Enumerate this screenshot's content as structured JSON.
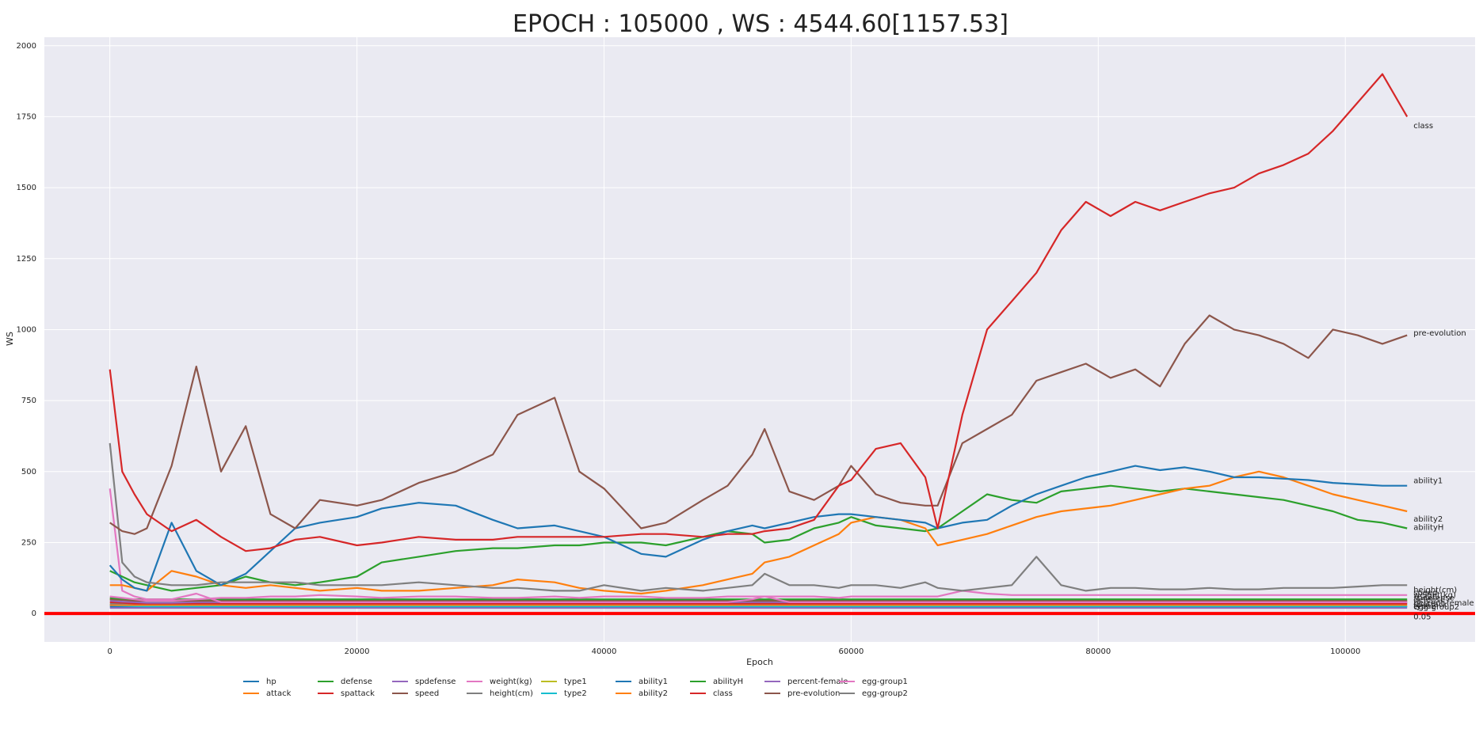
{
  "chart_data": {
    "type": "line",
    "title": "EPOCH : 105000 , WS : 4544.60[1157.53]",
    "xlabel": "Epoch",
    "ylabel": "WS",
    "xlim": [
      -5300,
      110500
    ],
    "ylim": [
      -100,
      2030
    ],
    "xticks": [
      0,
      20000,
      40000,
      60000,
      80000,
      100000
    ],
    "xtick_labels": [
      "0",
      "20000",
      "40000",
      "60000",
      "80000",
      "100000"
    ],
    "yticks": [
      0,
      250,
      500,
      750,
      1000,
      1250,
      1500,
      1750,
      2000
    ],
    "ytick_labels": [
      "0",
      "250",
      "500",
      "750",
      "1000",
      "1250",
      "1500",
      "1750",
      "2000"
    ],
    "grid": true,
    "legend_position": "bottom",
    "threshold_line": {
      "y": 0,
      "color": "#ff0000"
    },
    "end_annotations": [
      {
        "text": "class",
        "y": 1720
      },
      {
        "text": "pre-evolution",
        "y": 990
      },
      {
        "text": "ability1",
        "y": 470
      },
      {
        "text": "ability2",
        "y": 335
      },
      {
        "text": "abilityH",
        "y": 305
      },
      {
        "text": "height(cm)",
        "y": 85
      },
      {
        "text": "speed",
        "y": 75
      },
      {
        "text": "weight(kg)",
        "y": 67
      },
      {
        "text": "spdefense",
        "y": 57
      },
      {
        "text": "defense",
        "y": 50
      },
      {
        "text": "percent-female",
        "y": 40
      },
      {
        "text": "spattack",
        "y": 34
      },
      {
        "text": "type2",
        "y": 28
      },
      {
        "text": "egg-group2",
        "y": 25
      },
      {
        "text": "0.05",
        "y": -10
      }
    ],
    "x": [
      0,
      1000,
      2000,
      3000,
      5000,
      7000,
      9000,
      11000,
      13000,
      15000,
      17000,
      20000,
      22000,
      25000,
      28000,
      31000,
      33000,
      36000,
      38000,
      40000,
      43000,
      45000,
      48000,
      50000,
      52000,
      53000,
      55000,
      57000,
      59000,
      60000,
      62000,
      64000,
      66000,
      67000,
      69000,
      71000,
      73000,
      75000,
      77000,
      79000,
      81000,
      83000,
      85000,
      87000,
      89000,
      91000,
      93000,
      95000,
      97000,
      99000,
      101000,
      103000,
      105000
    ],
    "series": [
      {
        "name": "hp",
        "color": "#1f77b4",
        "values": [
          170,
          120,
          90,
          80,
          320,
          150,
          100,
          140,
          220,
          300,
          320,
          340,
          370,
          390,
          380,
          330,
          300,
          310,
          290,
          270,
          210,
          200,
          260,
          290,
          310,
          300,
          320,
          340,
          350,
          350,
          340,
          330,
          320,
          300,
          320,
          330,
          380,
          420,
          450,
          480,
          500,
          520,
          505,
          515,
          500,
          480,
          480,
          475,
          470,
          460,
          455,
          450,
          450
        ]
      },
      {
        "name": "attack",
        "color": "#ff7f0e",
        "values": [
          100,
          100,
          90,
          80,
          150,
          130,
          100,
          90,
          100,
          90,
          80,
          90,
          80,
          80,
          90,
          100,
          120,
          110,
          90,
          80,
          70,
          80,
          100,
          120,
          140,
          180,
          200,
          240,
          280,
          320,
          340,
          330,
          300,
          240,
          260,
          280,
          310,
          340,
          360,
          370,
          380,
          400,
          420,
          440,
          450,
          480,
          500,
          480,
          450,
          420,
          400,
          380,
          360
        ]
      },
      {
        "name": "defense",
        "color": "#2ca02c",
        "values": [
          150,
          130,
          110,
          100,
          80,
          90,
          100,
          130,
          110,
          100,
          110,
          130,
          180,
          200,
          220,
          230,
          230,
          240,
          240,
          250,
          250,
          240,
          270,
          290,
          280,
          250,
          260,
          300,
          320,
          340,
          310,
          300,
          290,
          300,
          360,
          420,
          400,
          390,
          430,
          440,
          450,
          440,
          430,
          440,
          430,
          420,
          410,
          400,
          380,
          360,
          330,
          320,
          300
        ]
      },
      {
        "name": "spattack",
        "color": "#d62728",
        "values": [
          860,
          500,
          420,
          350,
          290,
          330,
          270,
          220,
          230,
          260,
          270,
          240,
          250,
          270,
          260,
          260,
          270,
          270,
          270,
          270,
          280,
          280,
          270,
          280,
          280,
          290,
          300,
          330,
          450,
          470,
          580,
          600,
          480,
          300,
          700,
          1000,
          1100,
          1200,
          1350,
          1450,
          1400,
          1450,
          1420,
          1450,
          1480,
          1500,
          1550,
          1580,
          1620,
          1700,
          1800,
          1900,
          1750
        ]
      },
      {
        "name": "spdefense",
        "color": "#9467bd",
        "values": [
          45,
          42,
          40,
          38,
          38,
          40,
          40,
          40,
          40,
          42,
          40,
          40,
          40,
          40,
          40,
          40,
          40,
          40,
          40,
          40,
          40,
          40,
          40,
          40,
          40,
          40,
          40,
          40,
          40,
          40,
          40,
          40,
          40,
          40,
          40,
          40,
          40,
          40,
          40,
          40,
          40,
          40,
          40,
          40,
          40,
          40,
          40,
          40,
          40,
          40,
          40,
          40,
          40
        ]
      },
      {
        "name": "speed",
        "color": "#8c564b",
        "values": [
          320,
          290,
          280,
          300,
          520,
          870,
          500,
          660,
          350,
          300,
          400,
          380,
          400,
          460,
          500,
          560,
          700,
          760,
          500,
          440,
          300,
          320,
          400,
          450,
          560,
          650,
          430,
          400,
          450,
          520,
          420,
          390,
          380,
          380,
          600,
          650,
          700,
          820,
          850,
          880,
          830,
          860,
          800,
          950,
          1050,
          1000,
          980,
          950,
          900,
          1000,
          980,
          950,
          980
        ]
      },
      {
        "name": "weight(kg)",
        "color": "#e377c2",
        "values": [
          60,
          55,
          50,
          45,
          45,
          50,
          55,
          55,
          60,
          60,
          65,
          60,
          55,
          60,
          60,
          55,
          55,
          60,
          55,
          60,
          60,
          55,
          55,
          60,
          60,
          60,
          60,
          60,
          55,
          60,
          60,
          60,
          60,
          60,
          80,
          70,
          65,
          65,
          65,
          65,
          65,
          65,
          65,
          65,
          65,
          65,
          65,
          65,
          65,
          65,
          65,
          65,
          65
        ]
      },
      {
        "name": "height(cm)",
        "color": "#7f7f7f",
        "values": [
          600,
          180,
          130,
          110,
          100,
          100,
          110,
          110,
          110,
          110,
          100,
          100,
          100,
          110,
          100,
          90,
          90,
          80,
          80,
          100,
          80,
          90,
          80,
          90,
          100,
          140,
          100,
          100,
          90,
          100,
          100,
          90,
          110,
          90,
          80,
          90,
          100,
          200,
          100,
          80,
          90,
          90,
          85,
          85,
          90,
          85,
          85,
          90,
          90,
          90,
          95,
          100,
          100
        ]
      },
      {
        "name": "type1",
        "color": "#bcbd22",
        "values": [
          50,
          48,
          46,
          45,
          45,
          45,
          45,
          45,
          45,
          45,
          45,
          45,
          45,
          45,
          45,
          45,
          45,
          45,
          45,
          45,
          45,
          45,
          45,
          45,
          45,
          45,
          45,
          45,
          45,
          45,
          45,
          45,
          45,
          45,
          45,
          45,
          45,
          45,
          45,
          45,
          45,
          45,
          45,
          45,
          45,
          45,
          45,
          45,
          45,
          45,
          45,
          45,
          45
        ]
      },
      {
        "name": "type2",
        "color": "#17becf",
        "values": [
          30,
          28,
          26,
          25,
          25,
          25,
          25,
          25,
          25,
          25,
          25,
          25,
          25,
          25,
          25,
          25,
          25,
          25,
          25,
          25,
          25,
          25,
          25,
          25,
          25,
          25,
          25,
          25,
          25,
          25,
          25,
          25,
          25,
          25,
          25,
          25,
          25,
          25,
          25,
          25,
          25,
          25,
          25,
          25,
          25,
          25,
          25,
          25,
          25,
          25,
          25,
          25,
          25
        ]
      },
      {
        "name": "ability1",
        "color": "#1f77b4",
        "values": [
          25,
          25,
          25,
          25,
          25,
          25,
          25,
          25,
          25,
          25,
          25,
          25,
          25,
          25,
          25,
          25,
          25,
          25,
          25,
          25,
          25,
          25,
          25,
          25,
          25,
          25,
          25,
          25,
          25,
          25,
          25,
          25,
          25,
          25,
          25,
          25,
          25,
          25,
          25,
          25,
          25,
          25,
          25,
          25,
          25,
          25,
          25,
          25,
          25,
          25,
          25,
          25,
          25
        ]
      },
      {
        "name": "ability2",
        "color": "#ff7f0e",
        "values": [
          30,
          30,
          30,
          30,
          30,
          30,
          30,
          30,
          30,
          30,
          30,
          30,
          30,
          30,
          30,
          30,
          30,
          30,
          30,
          30,
          30,
          30,
          30,
          30,
          30,
          30,
          30,
          30,
          30,
          30,
          30,
          30,
          30,
          30,
          30,
          30,
          30,
          30,
          30,
          30,
          30,
          30,
          30,
          30,
          30,
          30,
          30,
          30,
          30,
          30,
          30,
          30,
          30
        ]
      },
      {
        "name": "abilityH",
        "color": "#2ca02c",
        "values": [
          55,
          52,
          50,
          50,
          50,
          50,
          50,
          50,
          50,
          50,
          50,
          50,
          50,
          50,
          50,
          50,
          50,
          50,
          50,
          50,
          50,
          50,
          50,
          50,
          50,
          50,
          50,
          50,
          50,
          50,
          50,
          50,
          50,
          50,
          50,
          50,
          50,
          50,
          50,
          50,
          50,
          50,
          50,
          50,
          50,
          50,
          50,
          50,
          50,
          50,
          50,
          50,
          50
        ]
      },
      {
        "name": "class",
        "color": "#d62728",
        "values": [
          40,
          38,
          35,
          35,
          35,
          35,
          35,
          35,
          35,
          35,
          35,
          35,
          35,
          35,
          35,
          35,
          35,
          35,
          35,
          35,
          35,
          35,
          35,
          35,
          35,
          35,
          35,
          35,
          35,
          35,
          35,
          35,
          35,
          35,
          35,
          35,
          35,
          35,
          35,
          35,
          35,
          35,
          35,
          35,
          35,
          35,
          35,
          35,
          35,
          35,
          35,
          35,
          35
        ]
      },
      {
        "name": "percent-female",
        "color": "#9467bd",
        "values": [
          20,
          20,
          20,
          20,
          20,
          20,
          20,
          20,
          20,
          20,
          20,
          20,
          20,
          20,
          20,
          20,
          20,
          20,
          20,
          20,
          20,
          20,
          20,
          20,
          20,
          20,
          20,
          20,
          20,
          20,
          20,
          20,
          20,
          20,
          20,
          20,
          20,
          20,
          20,
          20,
          20,
          20,
          20,
          20,
          20,
          20,
          20,
          20,
          20,
          20,
          20,
          20,
          20
        ]
      },
      {
        "name": "pre-evolution",
        "color": "#8c564b",
        "values": [
          50,
          48,
          45,
          45,
          45,
          45,
          45,
          45,
          45,
          45,
          45,
          45,
          45,
          45,
          45,
          45,
          45,
          45,
          45,
          45,
          45,
          45,
          45,
          45,
          45,
          45,
          45,
          45,
          45,
          45,
          45,
          45,
          45,
          45,
          45,
          45,
          45,
          45,
          45,
          45,
          45,
          45,
          45,
          45,
          45,
          45,
          45,
          45,
          45,
          45,
          45,
          45,
          45
        ]
      },
      {
        "name": "egg-group1",
        "color": "#e377c2",
        "values": [
          440,
          80,
          60,
          50,
          50,
          70,
          40,
          40,
          40,
          40,
          40,
          40,
          40,
          40,
          40,
          40,
          40,
          40,
          40,
          40,
          40,
          40,
          40,
          40,
          50,
          60,
          40,
          40,
          40,
          40,
          40,
          40,
          40,
          40,
          40,
          40,
          40,
          40,
          40,
          40,
          40,
          40,
          40,
          40,
          40,
          40,
          40,
          40,
          40,
          40,
          40,
          40,
          40
        ]
      },
      {
        "name": "egg-group2",
        "color": "#7f7f7f",
        "values": [
          35,
          35,
          35,
          35,
          35,
          35,
          35,
          35,
          35,
          35,
          35,
          35,
          35,
          35,
          35,
          35,
          35,
          35,
          35,
          35,
          35,
          35,
          35,
          35,
          35,
          35,
          35,
          35,
          35,
          35,
          35,
          35,
          35,
          35,
          35,
          35,
          35,
          35,
          35,
          35,
          35,
          35,
          35,
          35,
          35,
          35,
          35,
          35,
          35,
          35,
          35,
          35,
          35
        ]
      }
    ]
  }
}
